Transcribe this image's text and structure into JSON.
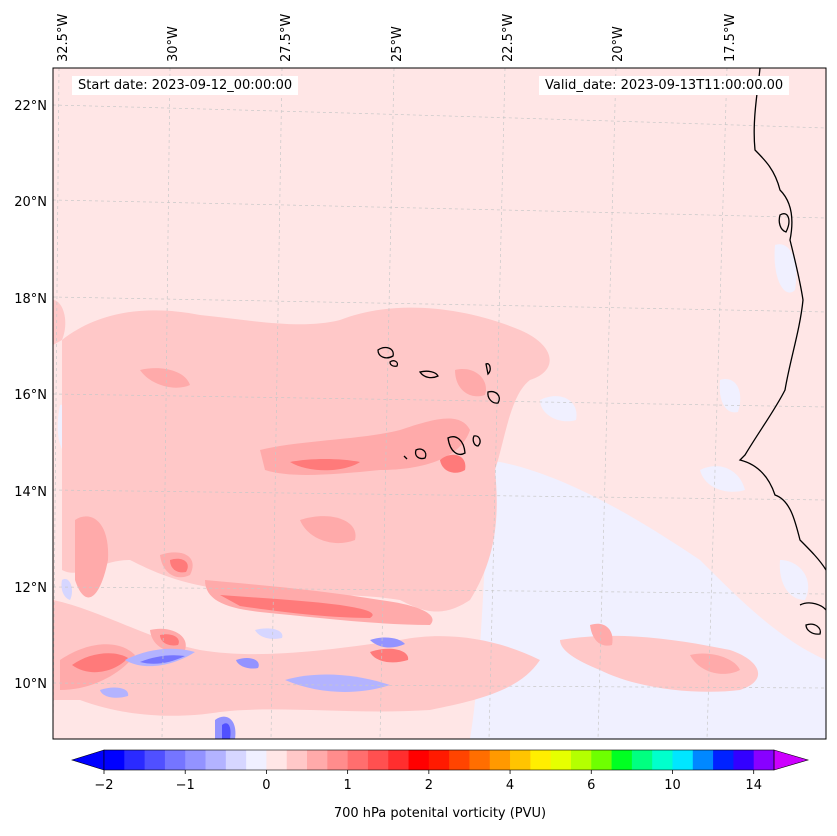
{
  "map": {
    "start_date": "Start date: 2023-09-12_00:00:00",
    "valid_date": "Valid_date: 2023-09-13T11:00:00.00",
    "lon_labels": [
      "32.5°W",
      "30°W",
      "27.5°W",
      "25°W",
      "22.5°W",
      "20°W",
      "17.5°W"
    ],
    "lat_labels": [
      "22°N",
      "20°N",
      "18°N",
      "16°N",
      "14°N",
      "12°N",
      "10°N"
    ],
    "colors": {
      "background_field": "#ffe6e6",
      "coastline": "#000000",
      "gridline": "#c8c8c8"
    }
  },
  "colorbar": {
    "label": "700 hPa potenital vorticity (PVU)",
    "tick_labels": [
      "−2",
      "−1",
      "0",
      "1",
      "2",
      "4",
      "6",
      "10",
      "14"
    ],
    "colors": [
      "#0000ff",
      "#2a2aff",
      "#5050ff",
      "#7575ff",
      "#9393ff",
      "#b3b3ff",
      "#d6d6ff",
      "#f0f0ff",
      "#ffe6e6",
      "#ffc8c8",
      "#ffaaaa",
      "#ff8c8c",
      "#ff6e6e",
      "#ff5050",
      "#ff2e2e",
      "#ff0000",
      "#ff1a00",
      "#ff4400",
      "#ff6e00",
      "#ff9900",
      "#ffc400",
      "#ffee00",
      "#e6ff00",
      "#b4ff00",
      "#6eff00",
      "#00ff22",
      "#00ff80",
      "#00ffcc",
      "#00e6ff",
      "#0088ff",
      "#0022ff",
      "#3300ff",
      "#8800ff"
    ],
    "under_color": "#0000ff",
    "over_color": "#cc00ff"
  }
}
